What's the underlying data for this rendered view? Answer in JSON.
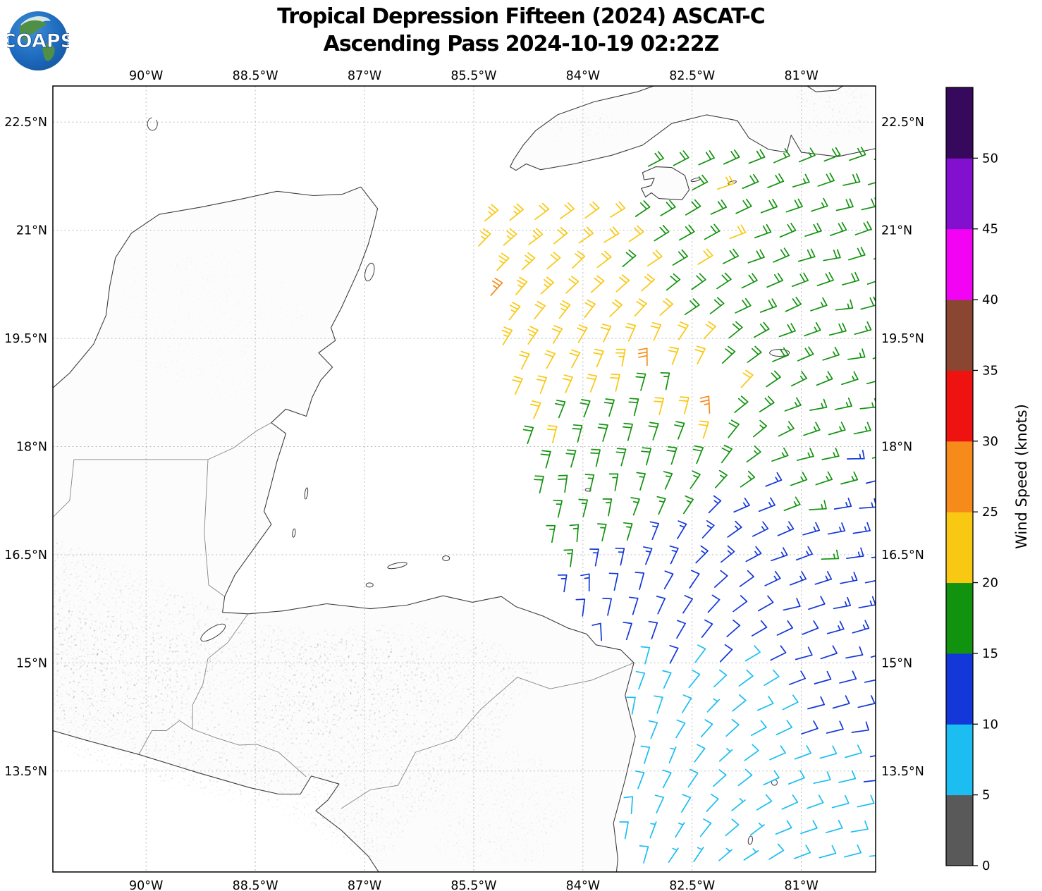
{
  "figure": {
    "title_line1": "Tropical Depression Fifteen (2024) ASCAT-C",
    "title_line2": "Ascending Pass 2024-10-19 02:22Z",
    "logo_text": "COAPS"
  },
  "chart_data": {
    "type": "wind_barb_map",
    "projection": "plate-carree",
    "extent": {
      "lon_min": -91.28,
      "lon_max": -79.98,
      "lat_min": 12.1,
      "lat_max": 23.0
    },
    "xticks": {
      "lons": [
        -90,
        -88.5,
        -87,
        -85.5,
        -84,
        -82.5,
        -81
      ],
      "labels": [
        "90°W",
        "88.5°W",
        "87°W",
        "85.5°W",
        "84°W",
        "82.5°W",
        "81°W"
      ]
    },
    "yticks": {
      "lats": [
        22.5,
        21,
        19.5,
        18,
        16.5,
        15,
        13.5
      ],
      "labels": [
        "22.5°N",
        "21°N",
        "19.5°N",
        "18°N",
        "16.5°N",
        "15°N",
        "13.5°N"
      ]
    },
    "grid": {
      "dashed": true,
      "color": "#b3b3b3"
    },
    "colorbar": {
      "label": "Wind Speed (knots)",
      "tick_values": [
        0,
        5,
        10,
        15,
        20,
        25,
        30,
        35,
        40,
        45,
        50
      ],
      "bin_size": 5,
      "value_max": 55,
      "colors": [
        "#595959",
        "#1cbef2",
        "#1337d8",
        "#12930f",
        "#f9c813",
        "#f68b1b",
        "#ee1211",
        "#8a4630",
        "#f303f3",
        "#8410cf",
        "#37095c"
      ]
    },
    "swath": {
      "left_edge_lon_at_lat23": -85.95,
      "left_edge_slope_lon_per_lat": 0.243,
      "grid_spacing_deg": 0.345,
      "row_tilt_lat_per_lon": 0.03
    },
    "data_gaps": [
      {
        "lon": -82.4,
        "lat": 18.78,
        "r": 0.24
      },
      {
        "lon": -82.75,
        "lat": 18.35,
        "r": 0.16
      },
      {
        "lon": -83.3,
        "lat": 18.62,
        "r": 0.16
      },
      {
        "lon": -82.0,
        "lat": 18.3,
        "r": 0.13
      }
    ],
    "wind_control_points_format": [
      "lon",
      "lat",
      "wind_from_deg",
      "speed_kt"
    ],
    "wind_control_points": [
      [
        -85.7,
        22.75,
        60,
        22
      ],
      [
        -84.8,
        22.8,
        62,
        23
      ],
      [
        -83.9,
        22.6,
        66,
        21
      ],
      [
        -83.0,
        22.5,
        70,
        18
      ],
      [
        -82.2,
        22.4,
        72,
        17
      ],
      [
        -81.3,
        22.35,
        75,
        17
      ],
      [
        -80.3,
        22.5,
        72,
        20
      ],
      [
        -85.85,
        21.9,
        55,
        26
      ],
      [
        -85.0,
        21.95,
        60,
        23
      ],
      [
        -84.0,
        21.9,
        64,
        21
      ],
      [
        -83.1,
        21.7,
        70,
        21
      ],
      [
        -82.1,
        21.6,
        76,
        21
      ],
      [
        -81.1,
        21.5,
        80,
        17
      ],
      [
        -80.3,
        21.4,
        84,
        20
      ],
      [
        -85.6,
        21.0,
        50,
        27
      ],
      [
        -84.7,
        20.9,
        56,
        24
      ],
      [
        -83.8,
        20.8,
        62,
        22
      ],
      [
        -82.8,
        20.7,
        70,
        21
      ],
      [
        -81.8,
        20.7,
        78,
        21
      ],
      [
        -80.8,
        20.6,
        84,
        20
      ],
      [
        -85.3,
        20.2,
        45,
        27
      ],
      [
        -84.5,
        20.0,
        50,
        25
      ],
      [
        -83.6,
        19.95,
        55,
        22
      ],
      [
        -82.7,
        19.9,
        65,
        20
      ],
      [
        -81.7,
        19.9,
        78,
        18
      ],
      [
        -80.6,
        19.9,
        86,
        17
      ],
      [
        -85.0,
        19.4,
        35,
        25
      ],
      [
        -84.2,
        19.3,
        28,
        23
      ],
      [
        -83.5,
        19.2,
        10,
        24
      ],
      [
        -83.1,
        19.15,
        355,
        31
      ],
      [
        -82.6,
        19.2,
        30,
        21
      ],
      [
        -82.0,
        19.3,
        60,
        19
      ],
      [
        -81.3,
        19.3,
        80,
        18
      ],
      [
        -80.4,
        19.3,
        88,
        17
      ],
      [
        -84.7,
        18.7,
        25,
        23
      ],
      [
        -84.0,
        18.65,
        20,
        22
      ],
      [
        -83.4,
        18.6,
        10,
        19
      ],
      [
        -82.9,
        18.6,
        5,
        24
      ],
      [
        -82.45,
        18.65,
        0,
        27
      ],
      [
        -82.2,
        18.55,
        345,
        31
      ],
      [
        -81.8,
        18.5,
        70,
        19
      ],
      [
        -81.0,
        18.5,
        85,
        17
      ],
      [
        -80.3,
        18.5,
        92,
        16
      ],
      [
        -82.85,
        18.82,
        15,
        13
      ],
      [
        -84.5,
        18.0,
        15,
        22
      ],
      [
        -83.9,
        17.95,
        12,
        20
      ],
      [
        -83.3,
        17.9,
        10,
        18
      ],
      [
        -82.8,
        17.9,
        15,
        20
      ],
      [
        -82.3,
        17.95,
        10,
        24
      ],
      [
        -81.9,
        17.9,
        60,
        17
      ],
      [
        -81.2,
        17.85,
        88,
        16
      ],
      [
        -80.4,
        17.9,
        95,
        15
      ],
      [
        -84.3,
        17.3,
        8,
        20
      ],
      [
        -83.7,
        17.25,
        5,
        17
      ],
      [
        -83.1,
        17.2,
        15,
        16
      ],
      [
        -82.5,
        17.2,
        35,
        16
      ],
      [
        -81.9,
        17.15,
        70,
        15
      ],
      [
        -81.55,
        17.3,
        80,
        13
      ],
      [
        -80.9,
        17.1,
        90,
        16
      ],
      [
        -80.3,
        17.1,
        93,
        15
      ],
      [
        -84.15,
        16.6,
        3,
        17
      ],
      [
        -83.5,
        16.5,
        8,
        15
      ],
      [
        -82.9,
        16.5,
        25,
        15
      ],
      [
        -82.2,
        16.45,
        55,
        14
      ],
      [
        -81.5,
        16.55,
        78,
        13
      ],
      [
        -80.7,
        16.4,
        90,
        16
      ],
      [
        -80.2,
        16.4,
        92,
        15
      ],
      [
        -83.95,
        15.95,
        358,
        13
      ],
      [
        -83.3,
        15.9,
        10,
        12
      ],
      [
        -82.6,
        15.85,
        35,
        11
      ],
      [
        -81.9,
        15.8,
        60,
        11
      ],
      [
        -81.2,
        15.75,
        82,
        12
      ],
      [
        -80.4,
        15.7,
        90,
        13
      ],
      [
        -83.8,
        15.2,
        352,
        11
      ],
      [
        -83.1,
        15.1,
        15,
        9
      ],
      [
        -82.4,
        15.05,
        40,
        8
      ],
      [
        -81.7,
        15.0,
        65,
        9
      ],
      [
        -81.0,
        14.95,
        82,
        11
      ],
      [
        -80.3,
        14.9,
        88,
        12
      ],
      [
        -83.6,
        14.4,
        350,
        10
      ],
      [
        -83.0,
        14.35,
        20,
        8
      ],
      [
        -82.3,
        14.3,
        45,
        7
      ],
      [
        -81.6,
        14.25,
        70,
        8
      ],
      [
        -80.9,
        14.2,
        84,
        11
      ],
      [
        -80.2,
        14.15,
        88,
        12
      ],
      [
        -83.5,
        13.6,
        355,
        9
      ],
      [
        -82.8,
        13.55,
        25,
        7
      ],
      [
        -82.1,
        13.5,
        50,
        7
      ],
      [
        -81.4,
        13.45,
        75,
        8
      ],
      [
        -80.7,
        13.4,
        85,
        10
      ],
      [
        -80.1,
        13.4,
        88,
        11
      ],
      [
        -83.45,
        12.8,
        0,
        8
      ],
      [
        -82.7,
        12.75,
        30,
        7
      ],
      [
        -81.9,
        12.7,
        55,
        7
      ],
      [
        -81.1,
        12.65,
        78,
        8
      ],
      [
        -80.3,
        12.6,
        86,
        10
      ],
      [
        -83.4,
        12.2,
        5,
        8
      ],
      [
        -82.6,
        12.2,
        35,
        7
      ],
      [
        -81.8,
        12.2,
        60,
        7
      ],
      [
        -80.9,
        12.2,
        80,
        9
      ],
      [
        -80.1,
        12.2,
        86,
        10
      ]
    ]
  }
}
